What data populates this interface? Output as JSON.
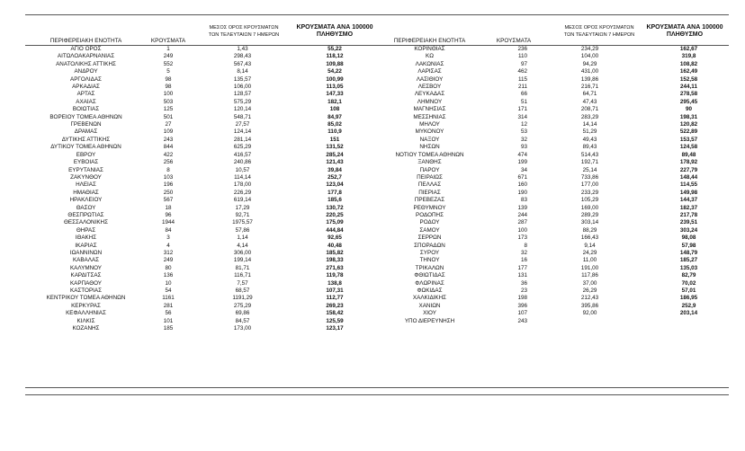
{
  "headers": {
    "region": "ΠΕΡΙΦΕΡΕΙΑΚΗ ΕΝΟΤΗΤΑ",
    "cases": "ΚΡΟΥΣΜΑΤΑ",
    "avg_line1": "ΜΕΣΟΣ ΟΡΟΣ ΚΡΟΥΣΜΑΤΩΝ",
    "avg_line2": "ΤΩΝ ΤΕΛΕΥΤΑΙΩΝ 7 ΗΜΕΡΩΝ",
    "rate_line1": "ΚΡΟΥΣΜΑΤΑ ΑΝΑ 100000",
    "rate_line2": "ΠΛΗΘΥΣΜΟ"
  },
  "left_rows": [
    [
      "ΑΓΙΟ ΟΡΟΣ",
      "1",
      "1,43",
      "55,22"
    ],
    [
      "ΑΙΤΩΛΟΑΚΑΡΝΑΝΙΑΣ",
      "249",
      "298,43",
      "118,12"
    ],
    [
      "ΑΝΑΤΟΛΙΚΗΣ ΑΤΤΙΚΗΣ",
      "552",
      "567,43",
      "109,88"
    ],
    [
      "ΑΝΔΡΟΥ",
      "5",
      "8,14",
      "54,22"
    ],
    [
      "ΑΡΓΟΛΙΔΑΣ",
      "98",
      "135,57",
      "100,99"
    ],
    [
      "ΑΡΚΑΔΙΑΣ",
      "98",
      "106,00",
      "113,05"
    ],
    [
      "ΑΡΤΑΣ",
      "100",
      "128,57",
      "147,33"
    ],
    [
      "ΑΧΑΪΑΣ",
      "503",
      "575,29",
      "182,1"
    ],
    [
      "ΒΟΙΩΤΙΑΣ",
      "125",
      "120,14",
      "108"
    ],
    [
      "ΒΟΡΕΙΟΥ ΤΟΜΕΑ ΑΘΗΝΩΝ",
      "501",
      "548,71",
      "84,97"
    ],
    [
      "ΓΡΕΒΕΝΩΝ",
      "27",
      "27,57",
      "85,02"
    ],
    [
      "ΔΡΑΜΑΣ",
      "109",
      "124,14",
      "110,9"
    ],
    [
      "ΔΥΤΙΚΗΣ ΑΤΤΙΚΗΣ",
      "243",
      "281,14",
      "151"
    ],
    [
      "ΔΥΤΙΚΟΥ ΤΟΜΕΑ ΑΘΗΝΩΝ",
      "844",
      "625,29",
      "131,52"
    ],
    [
      "ΕΒΡΟΥ",
      "422",
      "416,57",
      "285,24"
    ],
    [
      "ΕΥΒΟΙΑΣ",
      "256",
      "240,86",
      "121,43"
    ],
    [
      "ΕΥΡΥΤΑΝΙΑΣ",
      "8",
      "10,57",
      "39,84"
    ],
    [
      "ΖΑΚΥΝΘΟΥ",
      "103",
      "114,14",
      "252,7"
    ],
    [
      "ΗΛΕΙΑΣ",
      "196",
      "178,00",
      "123,04"
    ],
    [
      "ΗΜΑΘΙΑΣ",
      "250",
      "226,29",
      "177,8"
    ],
    [
      "ΗΡΑΚΛΕΙΟΥ",
      "567",
      "619,14",
      "185,6"
    ],
    [
      "ΘΑΣΟΥ",
      "18",
      "17,29",
      "130,72"
    ],
    [
      "ΘΕΣΠΡΩΤΙΑΣ",
      "96",
      "92,71",
      "220,25"
    ],
    [
      "ΘΕΣΣΑΛΟΝΙΚΗΣ",
      "1944",
      "1975,57",
      "175,09"
    ],
    [
      "ΘΗΡΑΣ",
      "84",
      "57,86",
      "444,84"
    ],
    [
      "ΙΘΑΚΗΣ",
      "3",
      "1,14",
      "92,65"
    ],
    [
      "ΙΚΑΡΙΑΣ",
      "4",
      "4,14",
      "40,48"
    ],
    [
      "ΙΩΑΝΝΙΝΩΝ",
      "312",
      "306,00",
      "185,82"
    ],
    [
      "ΚΑΒΑΛΑΣ",
      "249",
      "199,14",
      "198,33"
    ],
    [
      "ΚΑΛΥΜΝΟΥ",
      "80",
      "81,71",
      "271,63"
    ],
    [
      "ΚΑΡΔΙΤΣΑΣ",
      "136",
      "116,71",
      "119,78"
    ],
    [
      "ΚΑΡΠΑΘΟΥ",
      "10",
      "7,57",
      "138,8"
    ],
    [
      "ΚΑΣΤΟΡΙΑΣ",
      "54",
      "68,57",
      "107,31"
    ],
    [
      "ΚΕΝΤΡΙΚΟΥ ΤΟΜΕΑ ΑΘΗΝΩΝ",
      "1161",
      "1191,29",
      "112,77"
    ],
    [
      "ΚΕΡΚΥΡΑΣ",
      "281",
      "275,29",
      "269,23"
    ],
    [
      "ΚΕΦΑΛΛΗΝΙΑΣ",
      "56",
      "69,86",
      "158,42"
    ],
    [
      "ΚΙΛΚΙΣ",
      "101",
      "84,57",
      "125,59"
    ],
    [
      "ΚΟΖΑΝΗΣ",
      "185",
      "173,00",
      "123,17"
    ]
  ],
  "right_rows": [
    [
      "ΚΟΡΙΝΘΙΑΣ",
      "236",
      "234,29",
      "162,67"
    ],
    [
      "ΚΩ",
      "110",
      "104,00",
      "319,8"
    ],
    [
      "ΛΑΚΩΝΙΑΣ",
      "97",
      "94,29",
      "108,82"
    ],
    [
      "ΛΑΡΙΣΑΣ",
      "462",
      "431,00",
      "162,49"
    ],
    [
      "ΛΑΣΙΘΙΟΥ",
      "115",
      "139,86",
      "152,58"
    ],
    [
      "ΛΕΣΒΟΥ",
      "211",
      "216,71",
      "244,11"
    ],
    [
      "ΛΕΥΚΑΔΑΣ",
      "66",
      "64,71",
      "278,58"
    ],
    [
      "ΛΗΜΝΟΥ",
      "51",
      "47,43",
      "295,45"
    ],
    [
      "ΜΑΓΝΗΣΙΑΣ",
      "171",
      "208,71",
      "90"
    ],
    [
      "ΜΕΣΣΗΝΙΑΣ",
      "314",
      "283,29",
      "198,31"
    ],
    [
      "ΜΗΛΟΥ",
      "12",
      "14,14",
      "120,82"
    ],
    [
      "ΜΥΚΟΝΟΥ",
      "53",
      "51,29",
      "522,89"
    ],
    [
      "ΝΑΞΟΥ",
      "32",
      "49,43",
      "153,57"
    ],
    [
      "ΝΗΣΩΝ",
      "93",
      "89,43",
      "124,58"
    ],
    [
      "ΝΟΤΙΟΥ ΤΟΜΕΑ ΑΘΗΝΩΝ",
      "474",
      "514,43",
      "89,48"
    ],
    [
      "ΞΑΝΘΗΣ",
      "199",
      "192,71",
      "178,92"
    ],
    [
      "ΠΑΡΟΥ",
      "34",
      "25,14",
      "227,79"
    ],
    [
      "ΠΕΙΡΑΙΩΣ",
      "671",
      "733,86",
      "148,44"
    ],
    [
      "ΠΕΛΛΑΣ",
      "160",
      "177,00",
      "114,55"
    ],
    [
      "ΠΙΕΡΙΑΣ",
      "190",
      "233,29",
      "149,98"
    ],
    [
      "ΠΡΕΒΕΖΑΣ",
      "83",
      "105,29",
      "144,37"
    ],
    [
      "ΡΕΘΥΜΝΟΥ",
      "139",
      "169,00",
      "182,37"
    ],
    [
      "ΡΟΔΟΠΗΣ",
      "244",
      "289,29",
      "217,78"
    ],
    [
      "ΡΟΔΟΥ",
      "287",
      "303,14",
      "239,51"
    ],
    [
      "ΣΑΜΟΥ",
      "100",
      "88,29",
      "303,24"
    ],
    [
      "ΣΕΡΡΩΝ",
      "173",
      "166,43",
      "98,08"
    ],
    [
      "ΣΠΟΡΑΔΩΝ",
      "8",
      "9,14",
      "57,98"
    ],
    [
      "ΣΥΡΟΥ",
      "32",
      "24,29",
      "148,79"
    ],
    [
      "ΤΗΝΟΥ",
      "16",
      "11,00",
      "185,27"
    ],
    [
      "ΤΡΙΚΑΛΩΝ",
      "177",
      "191,00",
      "135,03"
    ],
    [
      "ΦΘΙΩΤΙΔΑΣ",
      "131",
      "117,86",
      "82,79"
    ],
    [
      "ΦΛΩΡΙΝΑΣ",
      "36",
      "37,00",
      "70,02"
    ],
    [
      "ΦΩΚΙΔΑΣ",
      "23",
      "26,29",
      "57,01"
    ],
    [
      "ΧΑΛΚΙΔΙΚΗΣ",
      "198",
      "212,43",
      "186,95"
    ],
    [
      "ΧΑΝΙΩΝ",
      "396",
      "395,86",
      "252,9"
    ],
    [
      "ΧΙΟΥ",
      "107",
      "92,00",
      "203,14"
    ],
    [
      "ΥΠΟ ΔΙΕΡΕΥΝΗΣΗ",
      "243",
      "",
      ""
    ]
  ]
}
